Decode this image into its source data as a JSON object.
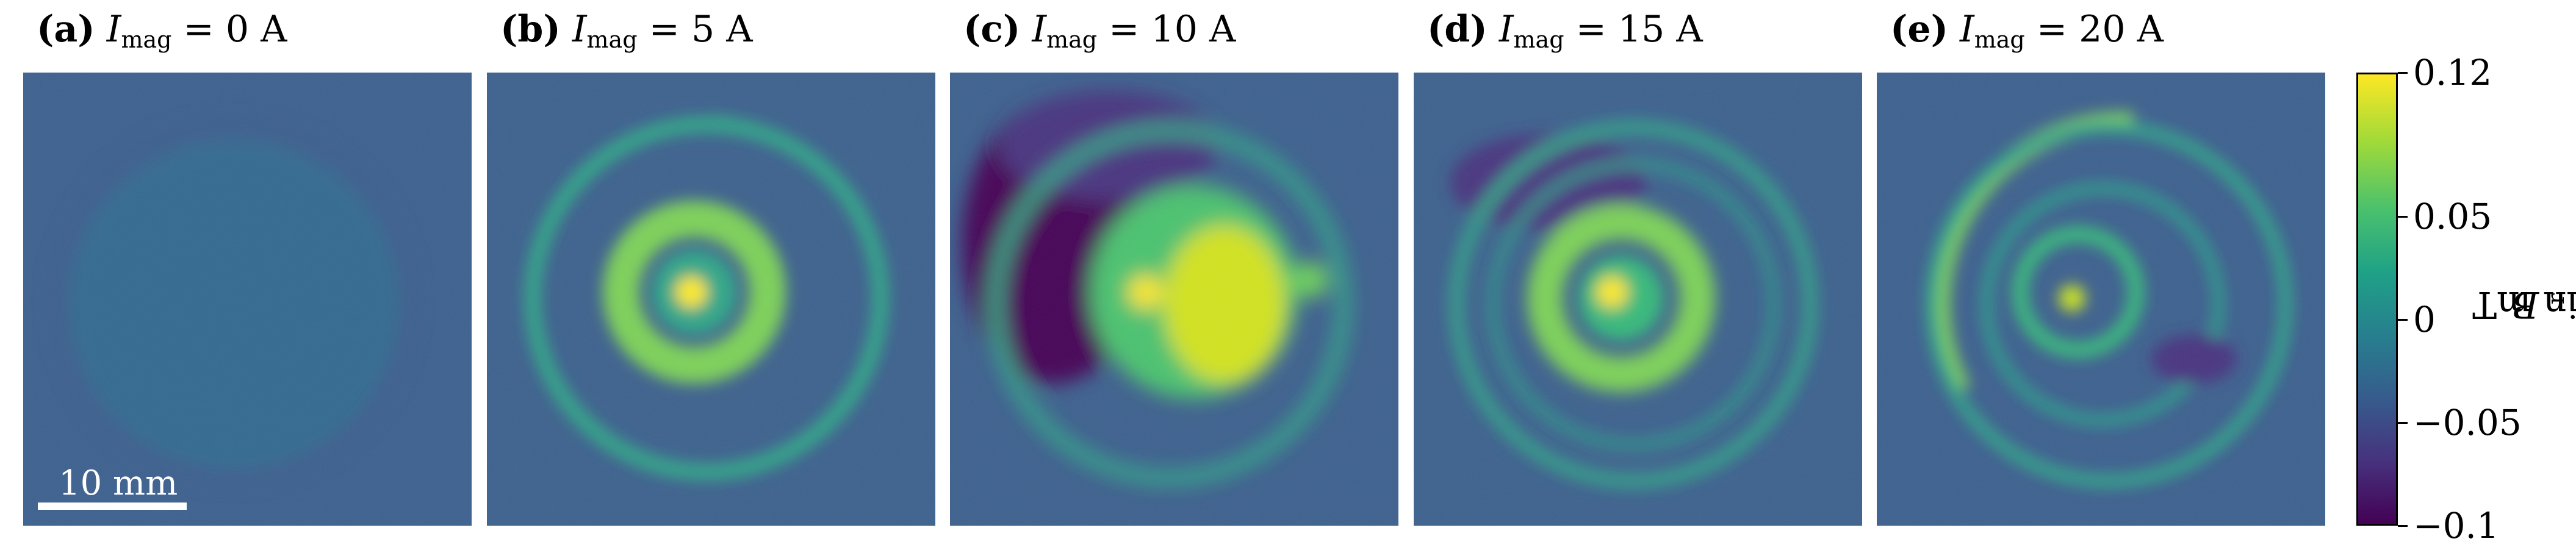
{
  "panels": [
    {
      "id": "a",
      "prefix": "(a)",
      "var": "I",
      "sub": "mag",
      "rest": " = 0 A",
      "current": 0
    },
    {
      "id": "b",
      "prefix": "(b)",
      "var": "I",
      "sub": "mag",
      "rest": " = 5 A",
      "current": 5
    },
    {
      "id": "c",
      "prefix": "(c)",
      "var": "I",
      "sub": "mag",
      "rest": " = 10 A",
      "current": 10
    },
    {
      "id": "d",
      "prefix": "(d)",
      "var": "I",
      "sub": "mag",
      "rest": " = 15 A",
      "current": 15
    },
    {
      "id": "e",
      "prefix": "(e)",
      "var": "I",
      "sub": "mag",
      "rest": " = 20 A",
      "current": 20
    }
  ],
  "scalebar": {
    "label": "10 mm",
    "length_mm": 10
  },
  "colorbar": {
    "var": "B",
    "sub": "r",
    "rest": " in mT",
    "colormap": "viridis",
    "min": -0.1,
    "max": 0.12,
    "ticks": [
      {
        "value": 0.12,
        "label": "0.12"
      },
      {
        "value": 0.05,
        "label": "0.05"
      },
      {
        "value": 0,
        "label": "0"
      },
      {
        "value": -0.05,
        "label": "−0.05"
      },
      {
        "value": -0.1,
        "label": "−0.1"
      }
    ]
  },
  "colors": {
    "background": "#3b5e8c",
    "ring": "#2fa486",
    "core": "#8fd44a",
    "hotspot": "#fde725",
    "negative": "#46337e",
    "deep_negative": "#440154"
  }
}
